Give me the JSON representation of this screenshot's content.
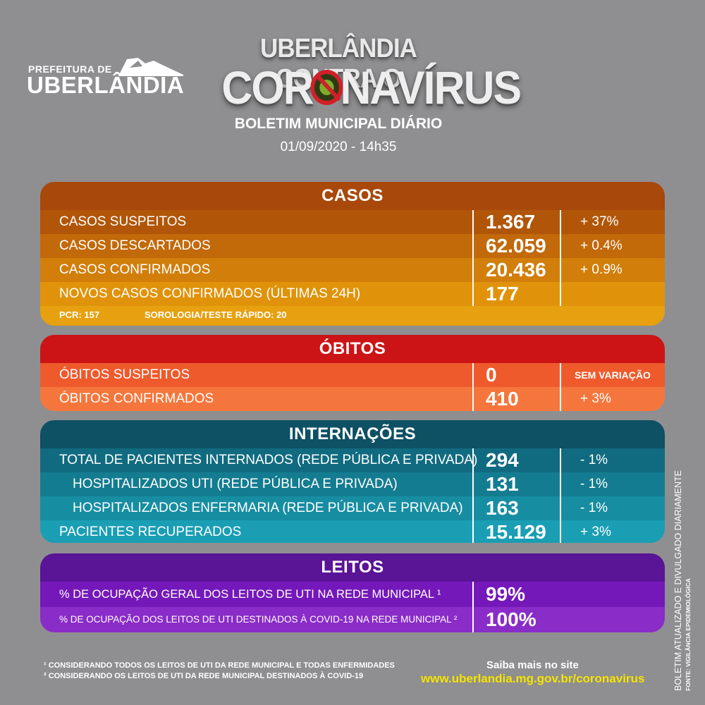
{
  "logo": {
    "line1": "PREFEITURA DE",
    "line2": "UBERLÂNDIA"
  },
  "header": {
    "title_line1": "UBERLÂNDIA CONTRA O",
    "title_part1": "COR",
    "title_part2": "NAVÍRUS",
    "subtitle": "BOLETIM MUNICIPAL DIÁRIO",
    "date": "01/09/2020 - 14h35"
  },
  "casos": {
    "title": "CASOS",
    "rows": [
      {
        "label": "CASOS SUSPEITOS",
        "value": "1.367",
        "variation": "+ 37%"
      },
      {
        "label": "CASOS DESCARTADOS",
        "value": "62.059",
        "variation": "+ 0.4%"
      },
      {
        "label": "CASOS CONFIRMADOS",
        "value": "20.436",
        "variation": "+ 0.9%"
      },
      {
        "label": "NOVOS CASOS CONFIRMADOS (ÚLTIMAS 24H)",
        "value": "177",
        "variation": ""
      }
    ],
    "pcr": "PCR: 157",
    "sorologia": "SOROLOGIA/TESTE RÁPIDO: 20",
    "colors": [
      "#b15609",
      "#c2690a",
      "#d17e0b",
      "#e0930a",
      "#e6a010"
    ]
  },
  "obitos": {
    "title": "ÓBITOS",
    "rows": [
      {
        "label": "ÓBITOS SUSPEITOS",
        "value": "0",
        "variation": "SEM VARIAÇÃO"
      },
      {
        "label": "ÓBITOS CONFIRMADOS",
        "value": "410",
        "variation": "+ 3%"
      }
    ],
    "colors": [
      "#ef5a2c",
      "#f5763c"
    ]
  },
  "internacoes": {
    "title": "INTERNAÇÕES",
    "rows": [
      {
        "label": "TOTAL DE PACIENTES INTERNADOS (REDE PÚBLICA E PRIVADA)",
        "value": "294",
        "variation": "- 1%"
      },
      {
        "label": "HOSPITALIZADOS UTI (REDE PÚBLICA E PRIVADA)",
        "value": "131",
        "variation": "- 1%"
      },
      {
        "label": "HOSPITALIZADOS ENFERMARIA (REDE PÚBLICA E PRIVADA)",
        "value": "163",
        "variation": "- 1%"
      },
      {
        "label": "PACIENTES RECUPERADOS",
        "value": "15.129",
        "variation": "+ 3%"
      }
    ],
    "colors": [
      "#116b80",
      "#147c90",
      "#178da2",
      "#1a9eb4"
    ]
  },
  "leitos": {
    "title": "LEITOS",
    "rows": [
      {
        "label": "% DE OCUPAÇÃO GERAL DOS LEITOS DE UTI NA REDE MUNICIPAL ¹",
        "value": "99%"
      },
      {
        "label": "% DE OCUPAÇÃO DOS LEITOS DE UTI DESTINADOS À COVID-19 NA REDE MUNICIPAL ²",
        "value": "100%"
      }
    ],
    "colors": [
      "#7418ba",
      "#8a2cc8"
    ]
  },
  "footer": {
    "note1": "¹ CONSIDERANDO TODOS OS LEITOS DE UTI DA REDE MUNICIPAL E TODAS ENFERMIDADES",
    "note2": "² CONSIDERANDO OS LEITOS DE UTI DA REDE MUNICIPAL DESTINADOS À COVID-19",
    "site_label": "Saiba mais no site",
    "site_url": "www.uberlandia.mg.gov.br/coronavirus",
    "side_text": "BOLETIM ATUALIZADO E DIVULGADO DIARIAMENTE",
    "side_source": "FONTE: VIGILÂNCIA EPIDEMIOLÓGICA"
  }
}
